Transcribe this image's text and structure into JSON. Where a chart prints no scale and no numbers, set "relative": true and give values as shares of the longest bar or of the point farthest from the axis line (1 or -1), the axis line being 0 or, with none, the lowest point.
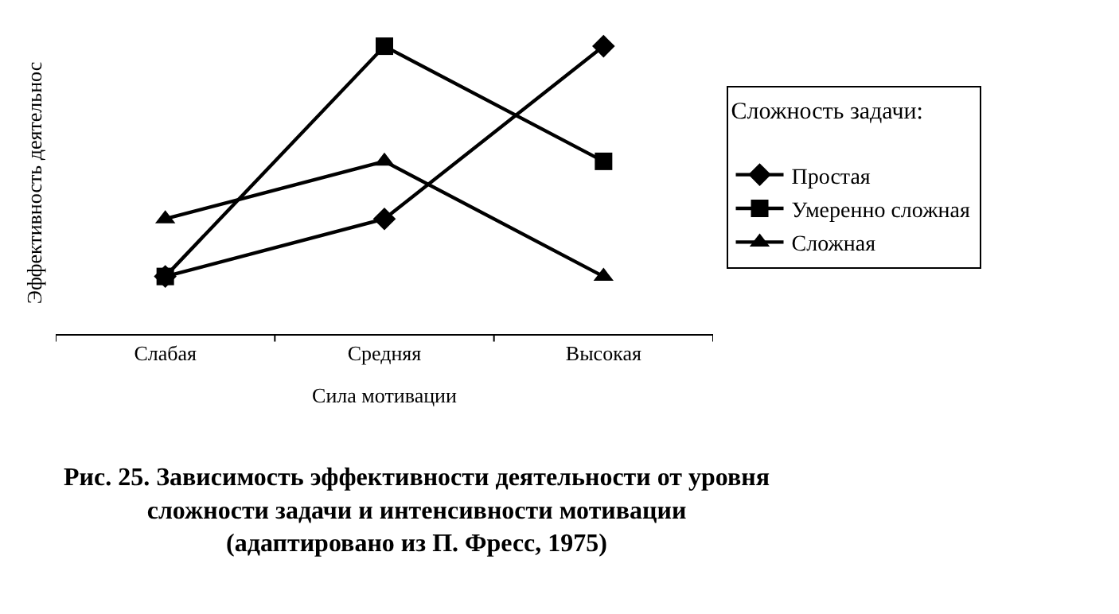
{
  "chart_data": {
    "type": "line",
    "relative": true,
    "categories": [
      "Слабая",
      "Средняя",
      "Высокая"
    ],
    "xlabel": "Сила мотивации",
    "ylabel": "Эффективность деятельнос",
    "legend_title": "Сложность задачи:",
    "legend": "right",
    "series": [
      {
        "name": "Простая",
        "color": "#000000",
        "marker": "diamond",
        "values": [
          0.2,
          0.4,
          1.0
        ]
      },
      {
        "name": "Умеренно сложная",
        "color": "#000000",
        "marker": "square",
        "values": [
          0.2,
          1.0,
          0.6
        ]
      },
      {
        "name": "Сложная",
        "color": "#000000",
        "marker": "triangle",
        "values": [
          0.4,
          0.6,
          0.2
        ]
      }
    ],
    "annotations": [
      "Рис. 25. Зависимость эффективности деятельности от уровня\nсложности задачи и интенсивности мотивации\n(адаптировано из П. Фресс, 1975)"
    ]
  }
}
